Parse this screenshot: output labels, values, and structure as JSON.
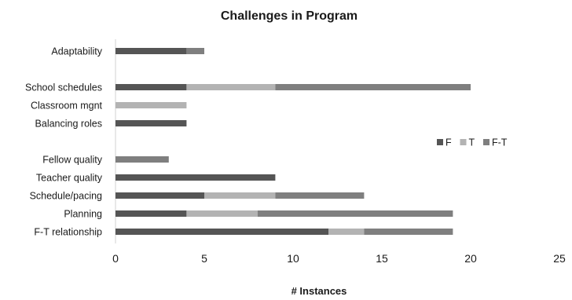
{
  "chart_data": {
    "type": "bar",
    "orientation": "horizontal",
    "stacked": true,
    "title": "Challenges in Program",
    "xlabel": "# Instances",
    "ylabel": "",
    "xlim": [
      0,
      25
    ],
    "xticks": [
      0,
      5,
      10,
      15,
      20,
      25
    ],
    "grid": false,
    "legend_position": "right",
    "categories": [
      "Adaptability",
      "",
      "School schedules",
      "Classroom mgnt",
      "Balancing roles",
      "",
      "Fellow quality",
      "Teacher quality",
      "Schedule/pacing",
      "Planning",
      "F-T relationship"
    ],
    "series": [
      {
        "name": "F",
        "color": "#555555",
        "values": [
          4,
          0,
          4,
          0,
          4,
          0,
          0,
          9,
          5,
          4,
          12
        ]
      },
      {
        "name": "T",
        "color": "#b3b3b3",
        "values": [
          0,
          0,
          5,
          4,
          0,
          0,
          0,
          0,
          4,
          4,
          2
        ]
      },
      {
        "name": "F-T",
        "color": "#7f7f7f",
        "values": [
          1,
          0,
          11,
          0,
          0,
          0,
          3,
          0,
          5,
          11,
          5
        ]
      }
    ]
  }
}
